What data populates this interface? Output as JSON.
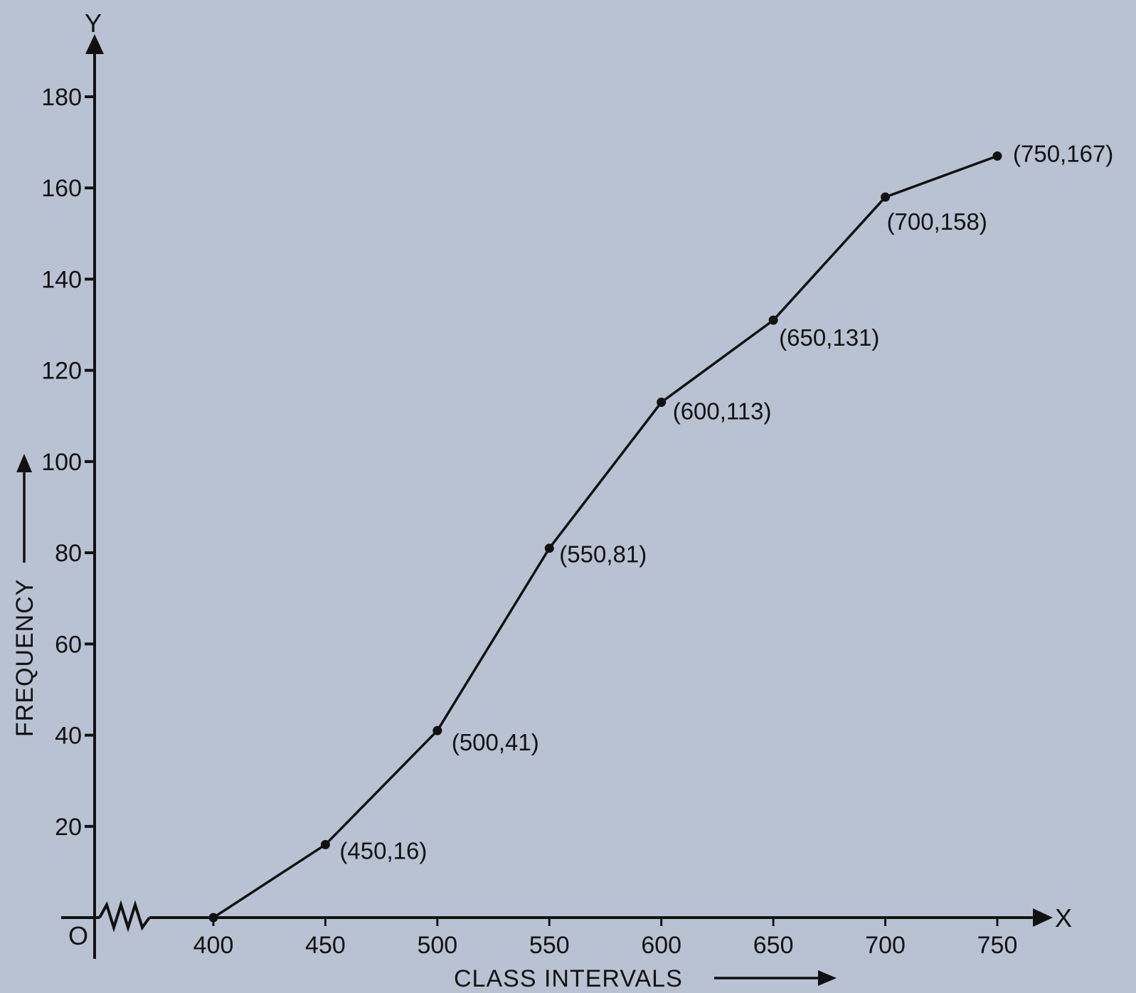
{
  "chart_data": {
    "type": "line",
    "x_axis_letter": "X",
    "y_axis_letter": "Y",
    "origin_label": "O",
    "xlabel": "CLASS INTERVALS",
    "ylabel": "FREQUENCY",
    "xlim": [
      400,
      750
    ],
    "ylim": [
      0,
      180
    ],
    "x_ticks": [
      "400",
      "450",
      "500",
      "550",
      "600",
      "650",
      "700",
      "750"
    ],
    "y_ticks": [
      "20",
      "40",
      "60",
      "80",
      "100",
      "120",
      "140",
      "160",
      "180"
    ],
    "axis_break": true,
    "grid": false,
    "series": [
      {
        "points": [
          {
            "x": 400,
            "y": 0,
            "label": ""
          },
          {
            "x": 450,
            "y": 16,
            "label": "(450,16)"
          },
          {
            "x": 500,
            "y": 41,
            "label": "(500,41)"
          },
          {
            "x": 550,
            "y": 81,
            "label": "(550,81)"
          },
          {
            "x": 600,
            "y": 113,
            "label": "(600,113)"
          },
          {
            "x": 650,
            "y": 131,
            "label": "(650,131)"
          },
          {
            "x": 700,
            "y": 158,
            "label": "(700,158)"
          },
          {
            "x": 750,
            "y": 167,
            "label": "(750,167)"
          }
        ]
      }
    ]
  }
}
